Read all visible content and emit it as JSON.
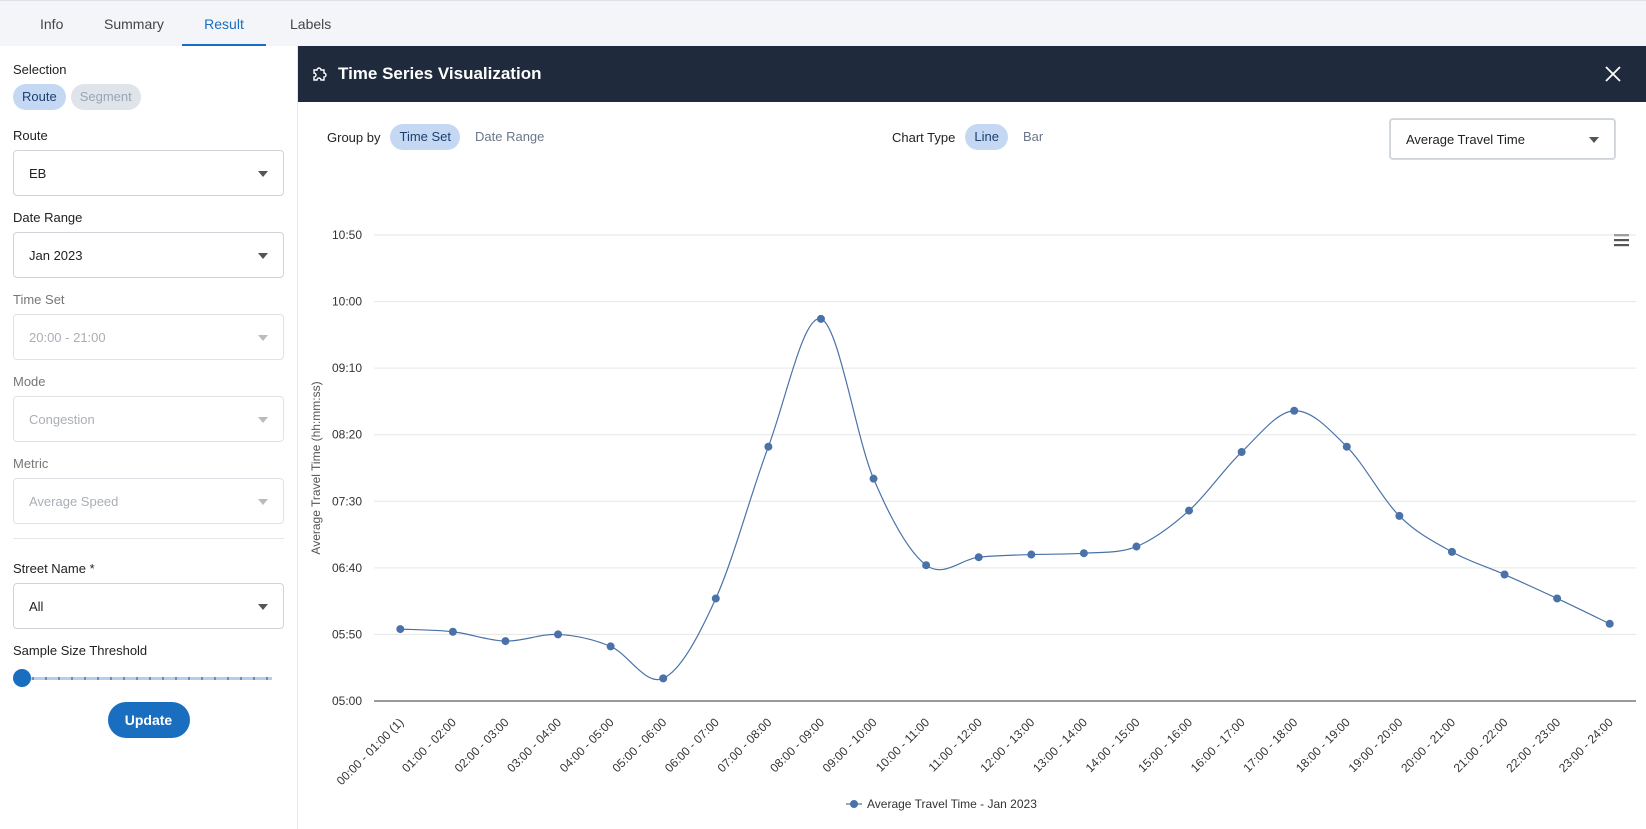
{
  "tabs": [
    "Info",
    "Summary",
    "Result",
    "Labels"
  ],
  "active_tab": 2,
  "sidebar": {
    "selection": {
      "label": "Selection",
      "options": [
        "Route",
        "Segment"
      ],
      "active": 0
    },
    "fields": [
      {
        "label": "Route",
        "value": "EB",
        "disabled": false
      },
      {
        "label": "Date Range",
        "value": "Jan 2023",
        "disabled": false
      },
      {
        "label": "Time Set",
        "value": "20:00 - 21:00",
        "disabled": true
      },
      {
        "label": "Mode",
        "value": "Congestion",
        "disabled": true
      },
      {
        "label": "Metric",
        "value": "Average Speed",
        "disabled": true
      }
    ],
    "street_name": {
      "label": "Street Name *",
      "value": "All"
    },
    "sample_size_label": "Sample Size Threshold",
    "update_button": "Update"
  },
  "panel": {
    "title": "Time Series Visualization",
    "group_by": {
      "label": "Group by",
      "options": [
        "Time Set",
        "Date Range"
      ],
      "active": 0
    },
    "chart_type": {
      "label": "Chart Type",
      "options": [
        "Line",
        "Bar"
      ],
      "active": 0
    },
    "metric_select": "Average Travel Time"
  },
  "chart_data": {
    "type": "line",
    "y_label": "Average Travel Time (hh:mm:ss)",
    "categories": [
      "00:00 - 01:00 (1)",
      "01:00 - 02:00",
      "02:00 - 03:00",
      "03:00 - 04:00",
      "04:00 - 05:00",
      "05:00 - 06:00",
      "06:00 - 07:00",
      "07:00 - 08:00",
      "08:00 - 09:00",
      "09:00 - 10:00",
      "10:00 - 11:00",
      "11:00 - 12:00",
      "12:00 - 13:00",
      "13:00 - 14:00",
      "14:00 - 15:00",
      "15:00 - 16:00",
      "16:00 - 17:00",
      "17:00 - 18:00",
      "18:00 - 19:00",
      "19:00 - 20:00",
      "20:00 - 21:00",
      "21:00 - 22:00",
      "22:00 - 23:00",
      "23:00 - 24:00"
    ],
    "series": [
      {
        "name": "Average Travel Time - Jan 2023",
        "color": "#4a72a8",
        "values": [
          354,
          352,
          345,
          350,
          341,
          317,
          377,
          491,
          587,
          467,
          402,
          408,
          410,
          411,
          416,
          443,
          487,
          518,
          491,
          439,
          412,
          395,
          377,
          358
        ]
      }
    ],
    "ylim": [
      300,
      650
    ],
    "yticks": [
      {
        "value": 300,
        "label": "05:00"
      },
      {
        "value": 350,
        "label": "05:50"
      },
      {
        "value": 400,
        "label": "06:40"
      },
      {
        "value": 450,
        "label": "07:30"
      },
      {
        "value": 500,
        "label": "08:20"
      },
      {
        "value": 550,
        "label": "09:10"
      },
      {
        "value": 600,
        "label": "10:00"
      },
      {
        "value": 650,
        "label": "10:50"
      }
    ],
    "grid": true
  }
}
